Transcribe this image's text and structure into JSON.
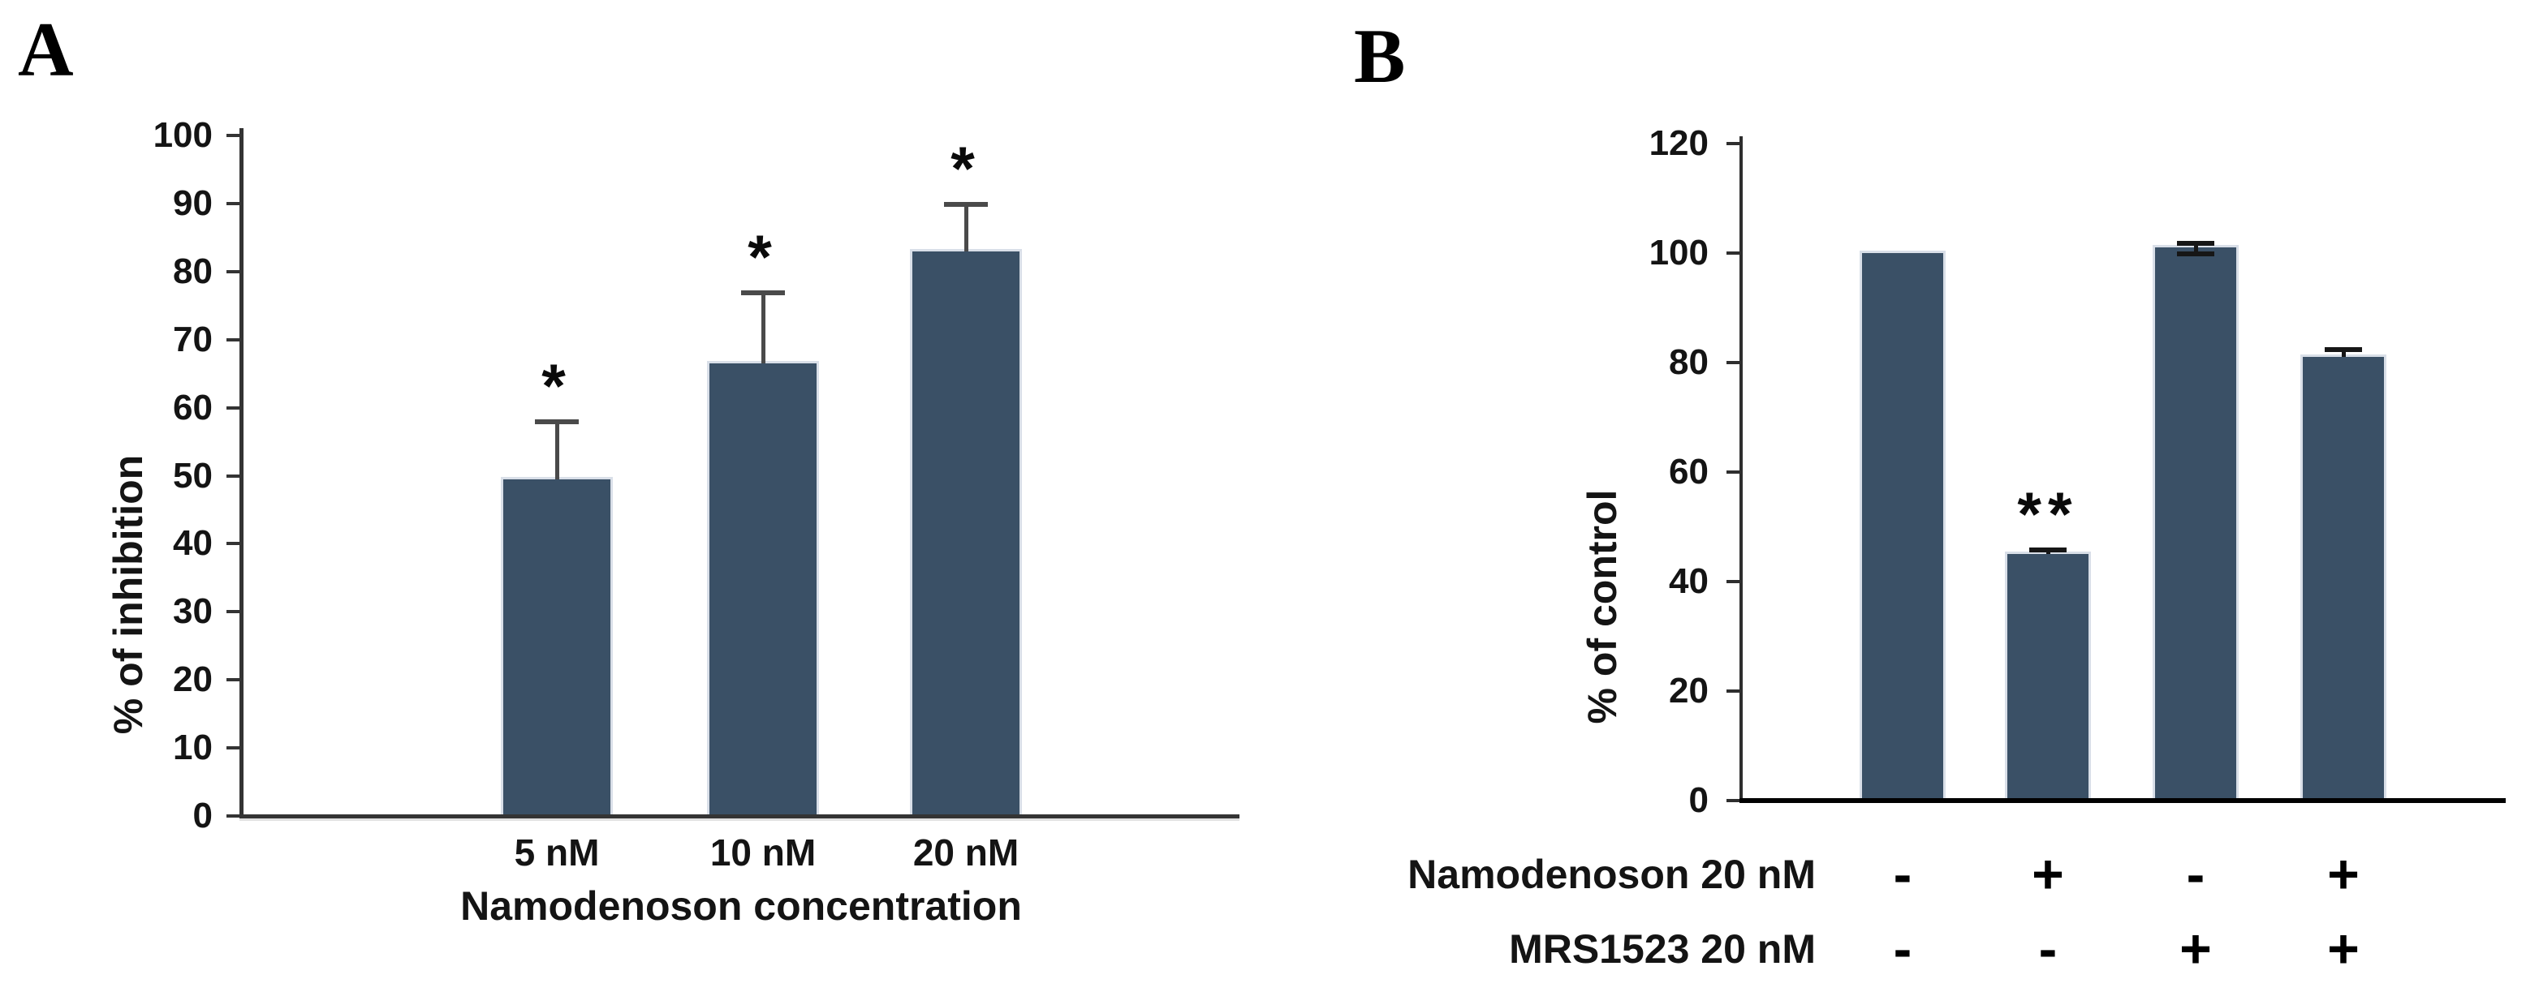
{
  "figure": {
    "panels": [
      {
        "label": "A"
      },
      {
        "label": "B"
      }
    ]
  },
  "chart_data": [
    {
      "type": "bar",
      "panel": "A",
      "title": "",
      "categories": [
        "5 nM",
        "10 nM",
        "20 nM"
      ],
      "values": [
        49.5,
        66.5,
        83
      ],
      "errors_plus": [
        8.5,
        10.5,
        7
      ],
      "significance": [
        "*",
        "*",
        "*"
      ],
      "xlabel": "Namodenoson concentration",
      "ylabel": "% of inhibition",
      "ylim": [
        0,
        100
      ],
      "yticks": [
        0,
        10,
        20,
        30,
        40,
        50,
        60,
        70,
        80,
        90,
        100
      ],
      "grid": false,
      "legend": false,
      "bar_color": "#3A5066"
    },
    {
      "type": "bar",
      "panel": "B",
      "title": "",
      "values": [
        100,
        45,
        101,
        81
      ],
      "errors_plus": [
        0,
        1,
        1,
        1.5
      ],
      "errors_minus": [
        0,
        1,
        1,
        1.5
      ],
      "significance": [
        "",
        "**",
        "",
        ""
      ],
      "xlabel": "",
      "ylabel": "% of control",
      "ylim": [
        0,
        120
      ],
      "yticks": [
        0,
        20,
        40,
        60,
        80,
        100,
        120
      ],
      "grid": false,
      "legend": false,
      "bar_color": "#3A5066",
      "condition_rows": [
        {
          "label": "Namodenoson 20 nM",
          "signs": [
            "-",
            "+",
            "-",
            "+"
          ]
        },
        {
          "label": "MRS1523 20 nM",
          "signs": [
            "-",
            "-",
            "+",
            "+"
          ]
        }
      ]
    }
  ]
}
